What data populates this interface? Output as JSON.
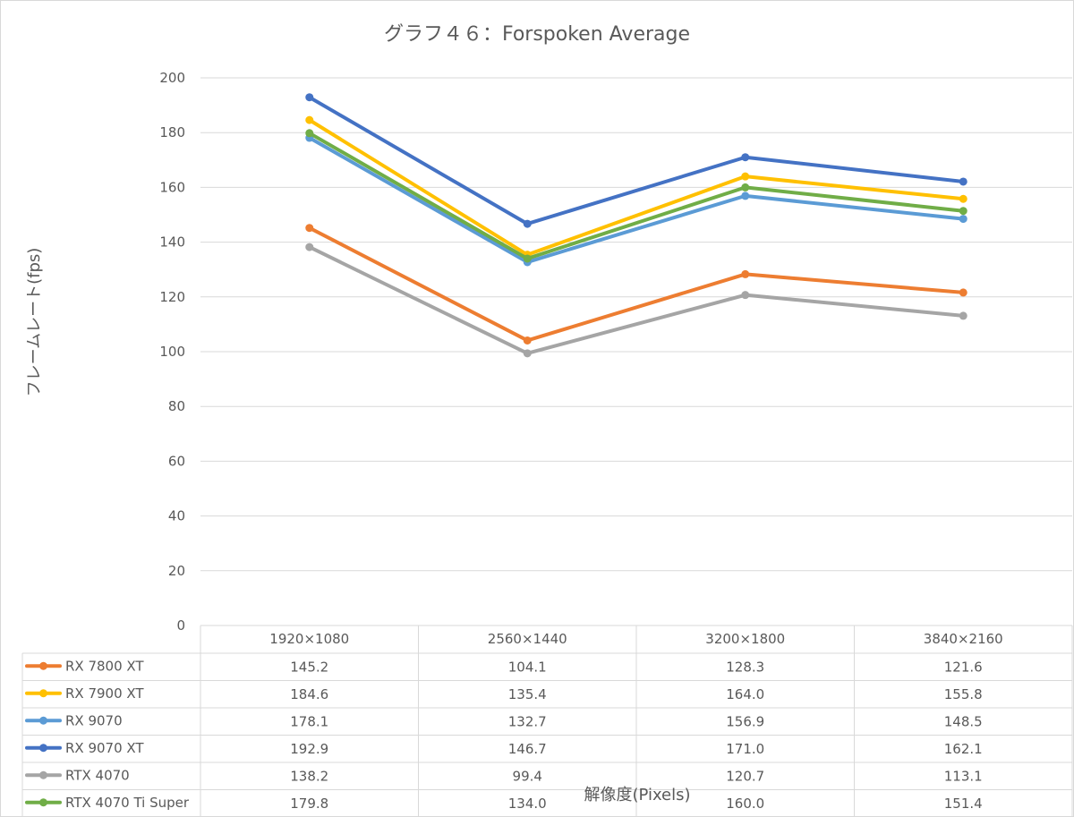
{
  "chart_data": {
    "type": "line",
    "title": "グラフ４６：Forspoken Average",
    "xlabel": "解像度(Pixels)",
    "ylabel": "フレームレート(fps)",
    "ylim": [
      0,
      200
    ],
    "yticks": [
      0,
      20,
      40,
      60,
      80,
      100,
      120,
      140,
      160,
      180,
      200
    ],
    "categories": [
      "1920×1080",
      "2560×1440",
      "3200×1800",
      "3840×2160"
    ],
    "grid": true,
    "legend": "data-table-below",
    "series": [
      {
        "name": "RX 7800 XT",
        "color": "#ED7D31",
        "values": [
          145.2,
          104.1,
          128.3,
          121.6
        ],
        "labels": [
          "145.2",
          "104.1",
          "128.3",
          "121.6"
        ]
      },
      {
        "name": "RX 7900 XT",
        "color": "#FFC000",
        "values": [
          184.6,
          135.4,
          164.0,
          155.8
        ],
        "labels": [
          "184.6",
          "135.4",
          "164.0",
          "155.8"
        ]
      },
      {
        "name": "RX 9070",
        "color": "#5B9BD5",
        "values": [
          178.1,
          132.7,
          156.9,
          148.5
        ],
        "labels": [
          "178.1",
          "132.7",
          "156.9",
          "148.5"
        ]
      },
      {
        "name": "RX 9070 XT",
        "color": "#4472C4",
        "values": [
          192.9,
          146.7,
          171.0,
          162.1
        ],
        "labels": [
          "192.9",
          "146.7",
          "171.0",
          "162.1"
        ]
      },
      {
        "name": "RTX 4070",
        "color": "#A5A5A5",
        "values": [
          138.2,
          99.4,
          120.7,
          113.1
        ],
        "labels": [
          "138.2",
          "99.4",
          "120.7",
          "113.1"
        ]
      },
      {
        "name": "RTX 4070 Ti Super",
        "color": "#70AD47",
        "values": [
          179.8,
          134.0,
          160.0,
          151.4
        ],
        "labels": [
          "179.8",
          "134.0",
          "160.0",
          "151.4"
        ]
      }
    ]
  }
}
